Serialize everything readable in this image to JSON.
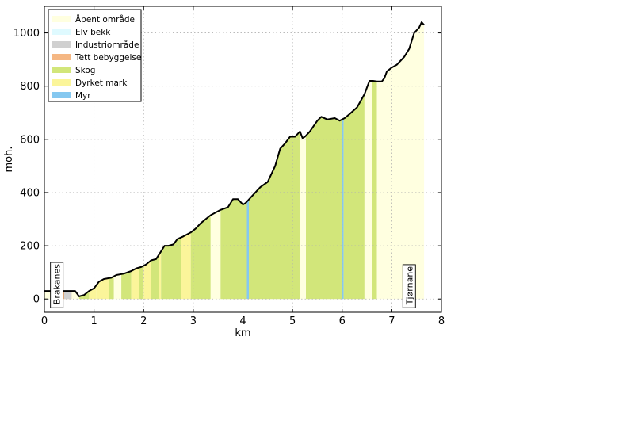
{
  "chart_data": {
    "type": "area",
    "xlabel": "km",
    "ylabel": "moh.",
    "xlim": [
      0,
      8
    ],
    "ylim": [
      -50,
      1100
    ],
    "xticks": [
      0,
      1,
      2,
      3,
      4,
      5,
      6,
      7,
      8
    ],
    "yticks": [
      0,
      200,
      400,
      600,
      800,
      1000
    ],
    "grid": true,
    "legend_position": "top-left",
    "legend": [
      {
        "label": "Åpent område",
        "color": "#ffffe0"
      },
      {
        "label": "Elv bekk",
        "color": "#dffaff"
      },
      {
        "label": "Industriområde",
        "color": "#d0d0d0"
      },
      {
        "label": "Tett bebyggelse",
        "color": "#f5b783"
      },
      {
        "label": "Skog",
        "color": "#d2e67a"
      },
      {
        "label": "Dyrket mark",
        "color": "#fbf59a"
      },
      {
        "label": "Myr",
        "color": "#85c8f0"
      }
    ],
    "places": [
      {
        "label": "Brakanes",
        "km": 0.25
      },
      {
        "label": "Tjørnane",
        "km": 7.35
      }
    ],
    "profile": {
      "x": [
        0.0,
        0.3,
        0.62,
        0.7,
        0.8,
        0.9,
        1.0,
        1.1,
        1.2,
        1.35,
        1.45,
        1.6,
        1.75,
        1.85,
        1.95,
        2.05,
        2.15,
        2.25,
        2.32,
        2.42,
        2.5,
        2.6,
        2.68,
        2.8,
        2.95,
        3.05,
        3.15,
        3.25,
        3.35,
        3.45,
        3.55,
        3.7,
        3.8,
        3.9,
        4.0,
        4.05,
        4.1,
        4.2,
        4.35,
        4.5,
        4.65,
        4.75,
        4.85,
        4.95,
        5.05,
        5.15,
        5.2,
        5.25,
        5.35,
        5.5,
        5.58,
        5.7,
        5.85,
        5.95,
        6.05,
        6.15,
        6.3,
        6.45,
        6.55,
        6.62,
        6.7,
        6.8,
        6.85,
        6.9,
        7.0,
        7.1,
        7.25,
        7.35,
        7.45,
        7.55,
        7.6,
        7.65
      ],
      "y": [
        30,
        30,
        30,
        10,
        15,
        30,
        40,
        65,
        75,
        80,
        90,
        95,
        105,
        115,
        120,
        130,
        145,
        150,
        170,
        200,
        200,
        205,
        225,
        235,
        250,
        265,
        285,
        300,
        315,
        325,
        335,
        345,
        375,
        375,
        355,
        360,
        370,
        390,
        420,
        440,
        500,
        565,
        585,
        610,
        610,
        630,
        605,
        610,
        630,
        670,
        685,
        675,
        680,
        670,
        680,
        695,
        720,
        770,
        820,
        820,
        818,
        818,
        830,
        855,
        870,
        880,
        910,
        940,
        1000,
        1020,
        1040,
        1030
      ]
    },
    "segments": [
      {
        "from": 0.0,
        "to": 0.3,
        "landuse": "Åpent område"
      },
      {
        "from": 0.3,
        "to": 0.55,
        "landuse": "Tett bebyggelse"
      },
      {
        "from": 0.4,
        "to": 0.55,
        "landuse": "Industriområde"
      },
      {
        "from": 0.55,
        "to": 0.7,
        "landuse": "Åpent område"
      },
      {
        "from": 0.7,
        "to": 0.9,
        "landuse": "Skog"
      },
      {
        "from": 0.9,
        "to": 1.05,
        "landuse": "Dyrket mark"
      },
      {
        "from": 1.05,
        "to": 1.3,
        "landuse": "Dyrket mark"
      },
      {
        "from": 1.3,
        "to": 1.4,
        "landuse": "Skog"
      },
      {
        "from": 1.4,
        "to": 1.55,
        "landuse": "Åpent område"
      },
      {
        "from": 1.55,
        "to": 1.75,
        "landuse": "Skog"
      },
      {
        "from": 1.75,
        "to": 1.9,
        "landuse": "Dyrket mark"
      },
      {
        "from": 1.9,
        "to": 2.0,
        "landuse": "Skog"
      },
      {
        "from": 2.0,
        "to": 2.15,
        "landuse": "Dyrket mark"
      },
      {
        "from": 2.15,
        "to": 2.3,
        "landuse": "Skog"
      },
      {
        "from": 2.3,
        "to": 2.35,
        "landuse": "Dyrket mark"
      },
      {
        "from": 2.35,
        "to": 2.75,
        "landuse": "Skog"
      },
      {
        "from": 2.75,
        "to": 2.95,
        "landuse": "Dyrket mark"
      },
      {
        "from": 2.95,
        "to": 3.35,
        "landuse": "Skog"
      },
      {
        "from": 3.35,
        "to": 3.55,
        "landuse": "Åpent område"
      },
      {
        "from": 3.55,
        "to": 4.08,
        "landuse": "Skog"
      },
      {
        "from": 4.08,
        "to": 4.12,
        "landuse": "Myr"
      },
      {
        "from": 4.12,
        "to": 5.15,
        "landuse": "Skog"
      },
      {
        "from": 5.15,
        "to": 5.27,
        "landuse": "Åpent område"
      },
      {
        "from": 5.27,
        "to": 5.99,
        "landuse": "Skog"
      },
      {
        "from": 5.99,
        "to": 6.03,
        "landuse": "Myr"
      },
      {
        "from": 6.03,
        "to": 6.45,
        "landuse": "Skog"
      },
      {
        "from": 6.45,
        "to": 6.6,
        "landuse": "Åpent område"
      },
      {
        "from": 6.6,
        "to": 6.7,
        "landuse": "Skog"
      },
      {
        "from": 6.7,
        "to": 7.65,
        "landuse": "Åpent område"
      }
    ]
  }
}
